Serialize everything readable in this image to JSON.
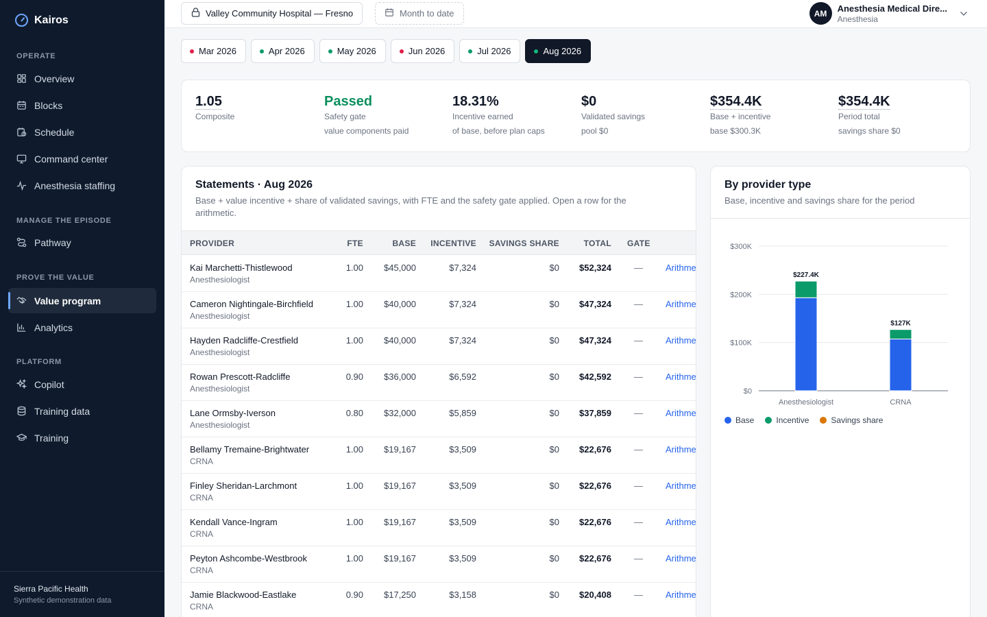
{
  "brand": {
    "name": "Kairos"
  },
  "sidebar": {
    "sections": [
      {
        "label": "OPERATE",
        "items": [
          {
            "label": "Overview",
            "icon": "grid-icon"
          },
          {
            "label": "Blocks",
            "icon": "calendar-icon"
          },
          {
            "label": "Schedule",
            "icon": "clock-calendar-icon"
          },
          {
            "label": "Command center",
            "icon": "monitor-icon"
          },
          {
            "label": "Anesthesia staffing",
            "icon": "pulse-icon"
          }
        ]
      },
      {
        "label": "MANAGE THE EPISODE",
        "items": [
          {
            "label": "Pathway",
            "icon": "route-icon"
          }
        ]
      },
      {
        "label": "PROVE THE VALUE",
        "items": [
          {
            "label": "Value program",
            "icon": "handshake-icon",
            "active": true
          },
          {
            "label": "Analytics",
            "icon": "bar-chart-icon"
          }
        ]
      },
      {
        "label": "PLATFORM",
        "items": [
          {
            "label": "Copilot",
            "icon": "sparkle-icon"
          },
          {
            "label": "Training data",
            "icon": "database-icon"
          },
          {
            "label": "Training",
            "icon": "graduation-cap-icon"
          }
        ]
      }
    ],
    "footer": {
      "org": "Sierra Pacific Health",
      "note": "Synthetic demonstration data"
    }
  },
  "topbar": {
    "facility": "Valley Community Hospital — Fresno",
    "date_range": "Month to date",
    "user": {
      "initials": "AM",
      "name": "Anesthesia Medical Dire...",
      "role": "Anesthesia"
    }
  },
  "periods": [
    {
      "label": "Mar 2026",
      "status_color": "#e11d48"
    },
    {
      "label": "Apr 2026",
      "status_color": "#0b9b6a"
    },
    {
      "label": "May 2026",
      "status_color": "#0b9b6a"
    },
    {
      "label": "Jun 2026",
      "status_color": "#e11d48"
    },
    {
      "label": "Jul 2026",
      "status_color": "#0b9b6a"
    },
    {
      "label": "Aug 2026",
      "status_color": "#0b9b6a",
      "active": true
    }
  ],
  "summary": {
    "composite": {
      "value": "1.05",
      "label": "Composite"
    },
    "safety": {
      "value": "Passed",
      "label": "Safety gate",
      "sub": "value components paid"
    },
    "incentive": {
      "value": "18.31%",
      "label": "Incentive earned",
      "sub": "of base, before plan caps"
    },
    "savings": {
      "value": "$0",
      "label": "Validated savings",
      "sub": "pool $0"
    },
    "base_incentive": {
      "value": "$354.4K",
      "label": "Base + incentive",
      "sub": "base $300.3K"
    },
    "period_total": {
      "value": "$354.4K",
      "label": "Period total",
      "sub": "savings share $0"
    }
  },
  "statements": {
    "title": "Statements · Aug 2026",
    "description": "Base + value incentive + share of validated savings, with FTE and the safety gate applied. Open a row for the arithmetic.",
    "columns": [
      "PROVIDER",
      "FTE",
      "BASE",
      "INCENTIVE",
      "SAVINGS SHARE",
      "TOTAL",
      "GATE"
    ],
    "rows": [
      {
        "name": "Kai Marchetti-Thistlewood",
        "role": "Anesthesiologist",
        "fte": "1.00",
        "base": "$45,000",
        "incentive": "$7,324",
        "savings": "$0",
        "total": "$52,324",
        "gate": "—",
        "link": "Arithmetic"
      },
      {
        "name": "Cameron Nightingale-Birchfield",
        "role": "Anesthesiologist",
        "fte": "1.00",
        "base": "$40,000",
        "incentive": "$7,324",
        "savings": "$0",
        "total": "$47,324",
        "gate": "—",
        "link": "Arithmetic"
      },
      {
        "name": "Hayden Radcliffe-Crestfield",
        "role": "Anesthesiologist",
        "fte": "1.00",
        "base": "$40,000",
        "incentive": "$7,324",
        "savings": "$0",
        "total": "$47,324",
        "gate": "—",
        "link": "Arithmetic"
      },
      {
        "name": "Rowan Prescott-Radcliffe",
        "role": "Anesthesiologist",
        "fte": "0.90",
        "base": "$36,000",
        "incentive": "$6,592",
        "savings": "$0",
        "total": "$42,592",
        "gate": "—",
        "link": "Arithmetic"
      },
      {
        "name": "Lane Ormsby-Iverson",
        "role": "Anesthesiologist",
        "fte": "0.80",
        "base": "$32,000",
        "incentive": "$5,859",
        "savings": "$0",
        "total": "$37,859",
        "gate": "—",
        "link": "Arithmetic"
      },
      {
        "name": "Bellamy Tremaine-Brightwater",
        "role": "CRNA",
        "fte": "1.00",
        "base": "$19,167",
        "incentive": "$3,509",
        "savings": "$0",
        "total": "$22,676",
        "gate": "—",
        "link": "Arithmetic"
      },
      {
        "name": "Finley Sheridan-Larchmont",
        "role": "CRNA",
        "fte": "1.00",
        "base": "$19,167",
        "incentive": "$3,509",
        "savings": "$0",
        "total": "$22,676",
        "gate": "—",
        "link": "Arithmetic"
      },
      {
        "name": "Kendall Vance-Ingram",
        "role": "CRNA",
        "fte": "1.00",
        "base": "$19,167",
        "incentive": "$3,509",
        "savings": "$0",
        "total": "$22,676",
        "gate": "—",
        "link": "Arithmetic"
      },
      {
        "name": "Peyton Ashcombe-Westbrook",
        "role": "CRNA",
        "fte": "1.00",
        "base": "$19,167",
        "incentive": "$3,509",
        "savings": "$0",
        "total": "$22,676",
        "gate": "—",
        "link": "Arithmetic"
      },
      {
        "name": "Jamie Blackwood-Eastlake",
        "role": "CRNA",
        "fte": "0.90",
        "base": "$17,250",
        "incentive": "$3,158",
        "savings": "$0",
        "total": "$20,408",
        "gate": "—",
        "link": "Arithmetic"
      }
    ]
  },
  "chart_panel": {
    "title": "By provider type",
    "subtitle": "Base, incentive and savings share for the period"
  },
  "chart_data": {
    "type": "bar",
    "stacked": true,
    "categories": [
      "Anesthesiologist",
      "CRNA"
    ],
    "series": [
      {
        "name": "Base",
        "color": "#2563eb",
        "values": [
          193000,
          107300
        ]
      },
      {
        "name": "Incentive",
        "color": "#0b9b6a",
        "values": [
          34400,
          19700
        ]
      },
      {
        "name": "Savings share",
        "color": "#d97706",
        "values": [
          0,
          0
        ]
      }
    ],
    "totals_labels": [
      "$227.4K",
      "$127K"
    ],
    "y_ticks": [
      {
        "value": 0,
        "label": "$0"
      },
      {
        "value": 100000,
        "label": "$100K"
      },
      {
        "value": 200000,
        "label": "$200K"
      },
      {
        "value": 300000,
        "label": "$300K"
      }
    ],
    "ylim": [
      0,
      300000
    ],
    "grid": true,
    "legend": "bottom-left"
  }
}
